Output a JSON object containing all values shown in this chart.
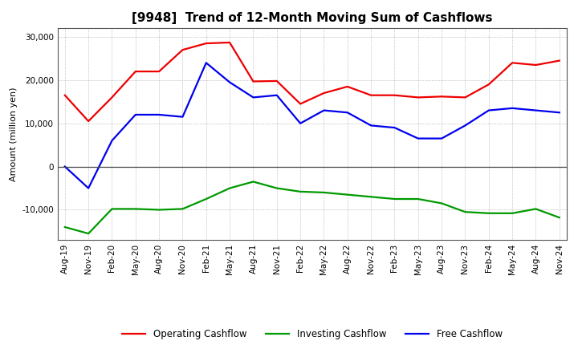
{
  "title": "[9948]  Trend of 12-Month Moving Sum of Cashflows",
  "ylabel": "Amount (million yen)",
  "background_color": "#ffffff",
  "plot_bg_color": "#ffffff",
  "grid_color": "#999999",
  "x_labels": [
    "Aug-19",
    "Nov-19",
    "Feb-20",
    "May-20",
    "Aug-20",
    "Nov-20",
    "Feb-21",
    "May-21",
    "Aug-21",
    "Nov-21",
    "Feb-22",
    "May-22",
    "Aug-22",
    "Nov-22",
    "Feb-23",
    "May-23",
    "Aug-23",
    "Nov-23",
    "Feb-24",
    "May-24",
    "Aug-24",
    "Nov-24"
  ],
  "operating": [
    16500,
    10500,
    16000,
    22000,
    22000,
    27000,
    28500,
    28700,
    19700,
    19800,
    14500,
    17000,
    18500,
    16500,
    16500,
    16000,
    16200,
    16000,
    19000,
    24000,
    23500,
    24500
  ],
  "investing": [
    -14000,
    -15500,
    -9800,
    -9800,
    -10000,
    -9800,
    -7500,
    -5000,
    -3500,
    -5000,
    -5800,
    -6000,
    -6500,
    -7000,
    -7500,
    -7500,
    -8500,
    -10500,
    -10800,
    -10800,
    -9800,
    -11800
  ],
  "free": [
    0,
    -5000,
    6000,
    12000,
    12000,
    11500,
    24000,
    19500,
    16000,
    16500,
    10000,
    13000,
    12500,
    9500,
    9000,
    6500,
    6500,
    9500,
    13000,
    13500,
    13000,
    12500
  ],
  "ylim": [
    -17000,
    32000
  ],
  "yticks": [
    -10000,
    0,
    10000,
    20000,
    30000
  ],
  "operating_color": "#ee0000",
  "investing_color": "#009900",
  "free_color": "#0000ee",
  "linewidth": 1.6,
  "title_fontsize": 11,
  "label_fontsize": 8,
  "tick_fontsize": 7.5,
  "legend_fontsize": 8.5
}
